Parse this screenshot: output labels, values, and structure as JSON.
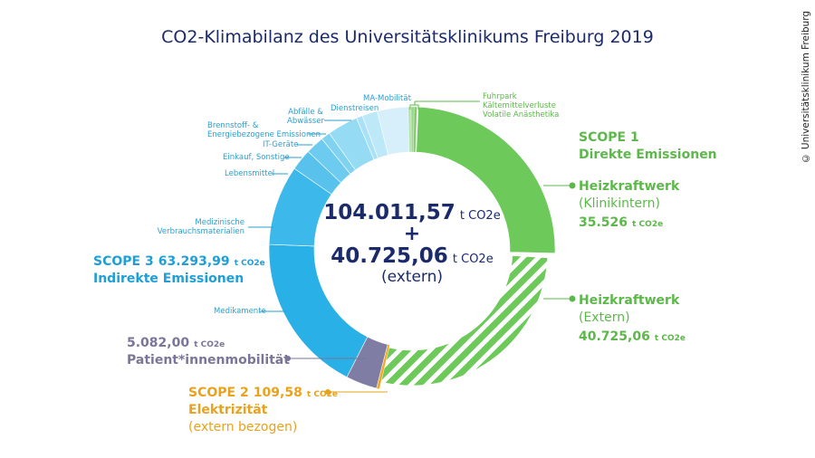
{
  "title": "CO2-Klimabilanz des Universitätsklinikums Freiburg 2019",
  "copyright": "© Universitätsklinikum Freiburg",
  "center": {
    "total": "104.011,57",
    "unit": "t CO2e",
    "plus": "+",
    "extern_total": "40.725,06",
    "extern_label": "(extern)"
  },
  "scope1": {
    "title": "SCOPE 1",
    "subtitle": "Direkte Emissionen",
    "hkw_intern": "Heizkraftwerk",
    "hkw_intern_sub": "(Klinikintern)",
    "hkw_intern_value": "35.526",
    "hkw_extern": "Heizkraftwerk",
    "hkw_extern_sub": "(Extern)",
    "hkw_extern_value": "40.725,06",
    "unit": "t CO2e",
    "small_labels": [
      "Fuhrpark",
      "Kältemittelverluste",
      "Volatile Anästhetika"
    ]
  },
  "scope2": {
    "title": "SCOPE 2",
    "value": "109,58",
    "unit": "t CO2e",
    "label": "Elektrizität",
    "sub": "(extern bezogen)"
  },
  "patient": {
    "value": "5.082,00",
    "unit": "t CO2e",
    "label": "Patient*innenmobilität"
  },
  "scope3": {
    "title": "SCOPE 3",
    "value": "63.293,99",
    "unit": "t CO2e",
    "label": "Indirekte Emissionen",
    "labels": {
      "medikamente": "Medikamente",
      "med1": "Medizinische",
      "med2": "Verbrauchsmaterialien",
      "lebensmittel": "Lebensmittel",
      "einkauf": "Einkauf, Sonstige",
      "it": "IT-Geräte",
      "brenn1": "Brennstoff- &",
      "brenn2": "Energiebezogene Emissionen",
      "abf1": "Abfälle &",
      "abf2": "Abwässer",
      "dienst": "Dienstreisen",
      "ma": "MA-Mobilität"
    }
  },
  "chart_data": {
    "type": "pie",
    "title": "CO2-Klimabilanz des Universitätsklinikums Freiburg 2019",
    "unit": "t CO2e",
    "note": "segment values without printed labels are estimated from arc length",
    "segments": [
      {
        "name": "Heizkraftwerk (Klinikintern)",
        "value": 35526,
        "color": "#6cc95a"
      },
      {
        "name": "Heizkraftwerk (Extern)",
        "value": 40725.06,
        "color": "#6cc95a",
        "hatched": true
      },
      {
        "name": "Elektrizität (extern bezogen)",
        "value": 109.58,
        "color": "#f2a81d"
      },
      {
        "name": "Patient*innenmobilität",
        "value": 5082.0,
        "color": "#807da5"
      },
      {
        "name": "Medikamente",
        "value": 26000,
        "color": "#29b0e6"
      },
      {
        "name": "Medizinische Verbrauchsmaterialien",
        "value": 13000,
        "color": "#3cb8ea"
      },
      {
        "name": "Lebensmittel",
        "value": 3500,
        "color": "#58c2ed"
      },
      {
        "name": "Einkauf, Sonstige",
        "value": 3000,
        "color": "#6ccbef"
      },
      {
        "name": "IT-Geräte",
        "value": 1500,
        "color": "#80d2f1"
      },
      {
        "name": "Brennstoff- & Energiebezogene Emissionen",
        "value": 5000,
        "color": "#95dbf4"
      },
      {
        "name": "Abfälle & Abwässer",
        "value": 1000,
        "color": "#a9e2f6"
      },
      {
        "name": "Dienstreisen",
        "value": 2500,
        "color": "#bde8f8"
      },
      {
        "name": "MA-Mobilität",
        "value": 5000,
        "color": "#d6effa"
      },
      {
        "name": "Fuhrpark",
        "value": 400,
        "color": "#b7e3ac"
      },
      {
        "name": "Kältemittelverluste",
        "value": 300,
        "color": "#9bd68c"
      },
      {
        "name": "Volatile Anästhetika",
        "value": 300,
        "color": "#82cd70"
      }
    ]
  }
}
